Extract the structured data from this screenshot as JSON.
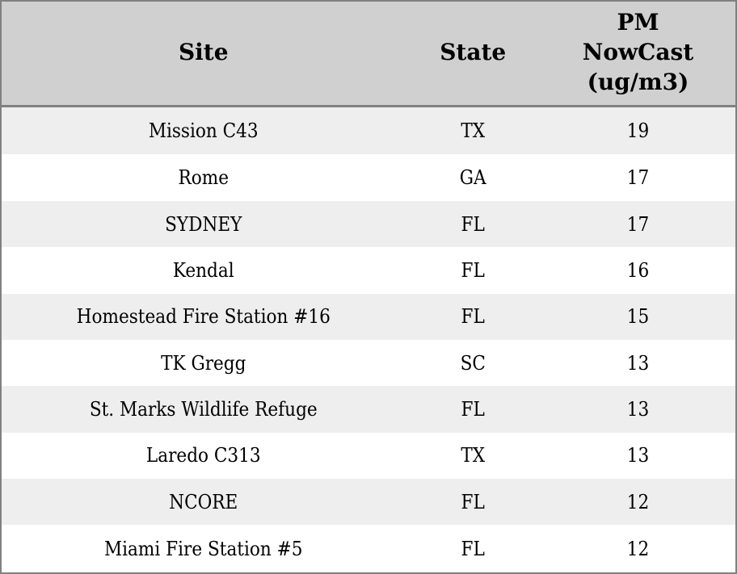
{
  "theme": {
    "header_bg": "#d0d0d0",
    "stripe_bg": "#eeeeee",
    "row_bg": "#ffffff",
    "border_color": "#808080",
    "text_color": "#000000"
  },
  "table": {
    "columns": [
      {
        "label": "Site",
        "lines": [
          "Site"
        ]
      },
      {
        "label": "State",
        "lines": [
          "State"
        ]
      },
      {
        "label": "PM NowCast (ug/m3)",
        "lines": [
          "PM",
          "NowCast",
          "(ug/m3)"
        ]
      }
    ],
    "rows": [
      {
        "site": "Mission C43",
        "state": "TX",
        "pm": 19
      },
      {
        "site": "Rome",
        "state": "GA",
        "pm": 17
      },
      {
        "site": "SYDNEY",
        "state": "FL",
        "pm": 17
      },
      {
        "site": "Kendal",
        "state": "FL",
        "pm": 16
      },
      {
        "site": "Homestead Fire Station #16",
        "state": "FL",
        "pm": 15
      },
      {
        "site": "TK Gregg",
        "state": "SC",
        "pm": 13
      },
      {
        "site": "St. Marks Wildlife Refuge",
        "state": "FL",
        "pm": 13
      },
      {
        "site": "Laredo C313",
        "state": "TX",
        "pm": 13
      },
      {
        "site": "NCORE",
        "state": "FL",
        "pm": 12
      },
      {
        "site": "Miami Fire Station #5",
        "state": "FL",
        "pm": 12
      }
    ]
  },
  "chart_data": {
    "type": "table",
    "columns": [
      "Site",
      "State",
      "PM NowCast (ug/m3)"
    ],
    "rows": [
      [
        "Mission C43",
        "TX",
        19
      ],
      [
        "Rome",
        "GA",
        17
      ],
      [
        "SYDNEY",
        "FL",
        17
      ],
      [
        "Kendal",
        "FL",
        16
      ],
      [
        "Homestead Fire Station #16",
        "FL",
        15
      ],
      [
        "TK Gregg",
        "SC",
        13
      ],
      [
        "St. Marks Wildlife Refuge",
        "FL",
        13
      ],
      [
        "Laredo C313",
        "TX",
        13
      ],
      [
        "NCORE",
        "FL",
        12
      ],
      [
        "Miami Fire Station #5",
        "FL",
        12
      ]
    ],
    "layout": {
      "header_background": "#d0d0d0",
      "stripe_background": "#eeeeee",
      "grid": "outer-border-and-header-rule-only",
      "stripe_pattern": "odd-rows-shaded"
    }
  }
}
